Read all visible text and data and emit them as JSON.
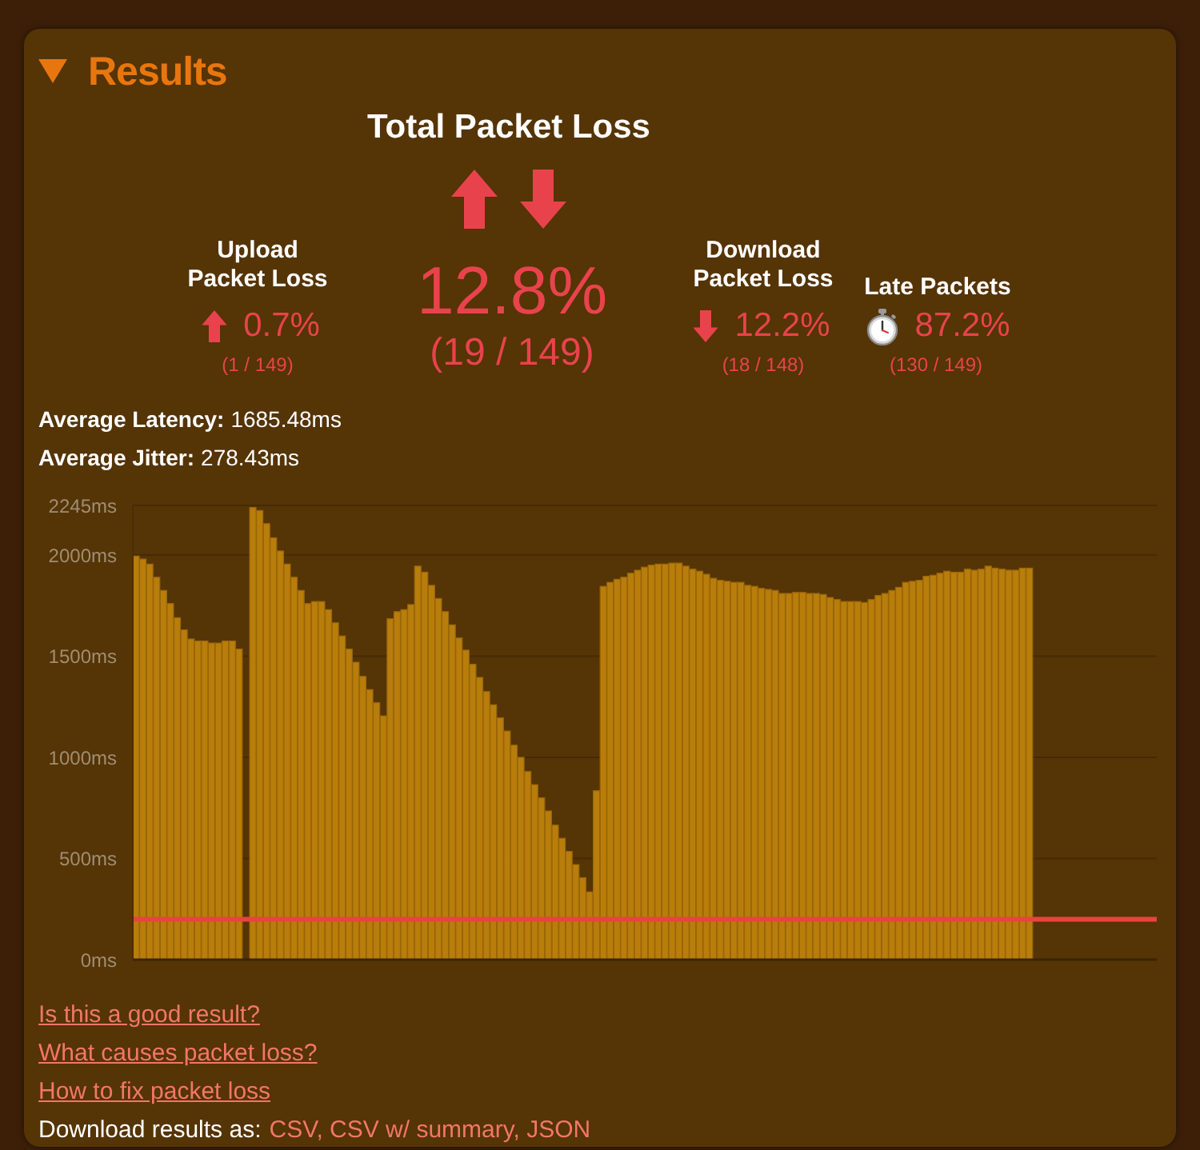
{
  "chart_data": [
    {
      "type": "other",
      "title": "Results",
      "annotations": [
        "Total Packet Loss",
        "12.8%",
        "(19 / 149)",
        "Upload Packet Loss",
        "0.7%",
        "(1 / 149)",
        "Download Packet Loss",
        "12.2%",
        "(18 / 148)",
        "Late Packets",
        "87.2%",
        "(130 / 149)",
        "Average Latency:",
        "1685.48ms",
        "Average Jitter:",
        "278.43ms"
      ]
    },
    {
      "type": "bar",
      "categories": [
        null,
        null,
        null,
        null,
        null,
        null,
        null,
        null,
        null,
        null,
        null,
        null,
        null,
        null,
        null,
        null,
        null,
        null,
        null,
        null,
        null,
        null,
        null,
        null,
        null,
        null,
        null,
        null,
        null,
        null,
        null,
        null,
        null,
        null,
        null,
        null,
        null,
        null,
        null,
        null,
        null,
        null,
        null,
        null,
        null,
        null,
        null,
        null,
        null,
        null,
        null,
        null,
        null,
        null,
        null,
        null,
        null,
        null,
        null,
        null,
        null,
        null,
        null,
        null,
        null,
        null,
        null,
        null,
        null,
        null,
        null,
        null,
        null,
        null,
        null,
        null,
        null,
        null,
        null,
        null,
        null,
        null,
        null,
        null,
        null,
        null,
        null,
        null,
        null,
        null,
        null,
        null,
        null,
        null,
        null,
        null,
        null,
        null,
        null,
        null,
        null,
        null,
        null,
        null,
        null,
        null,
        null,
        null,
        null,
        null,
        null,
        null,
        null,
        null,
        null,
        null,
        null,
        null,
        null,
        null,
        null,
        null,
        null,
        null,
        null,
        null,
        null,
        null,
        null,
        null,
        null,
        null,
        null,
        null,
        null,
        null,
        null,
        null,
        null,
        null,
        null,
        null,
        null,
        null,
        null,
        null,
        null,
        null,
        null
      ],
      "values": [
        1995,
        1980,
        1955,
        1890,
        1825,
        1760,
        1690,
        1630,
        1585,
        1575,
        1575,
        1565,
        1565,
        1575,
        1575,
        1535,
        null,
        2235,
        2220,
        2155,
        2085,
        2020,
        1955,
        1890,
        1825,
        1760,
        1770,
        1770,
        1730,
        1665,
        1600,
        1535,
        1470,
        1400,
        1335,
        1270,
        1205,
        1685,
        1720,
        1730,
        1755,
        1945,
        1915,
        1850,
        1785,
        1720,
        1655,
        1590,
        1530,
        1460,
        1395,
        1325,
        1260,
        1195,
        1130,
        1060,
        1000,
        930,
        865,
        800,
        735,
        665,
        600,
        535,
        470,
        405,
        335,
        835,
        1845,
        1865,
        1880,
        1890,
        1910,
        1925,
        1940,
        1950,
        1955,
        1955,
        1960,
        1960,
        1945,
        1930,
        1920,
        1905,
        1885,
        1875,
        1870,
        1865,
        1865,
        1850,
        1845,
        1835,
        1830,
        1825,
        1810,
        1810,
        1815,
        1815,
        1810,
        1810,
        1805,
        1790,
        1780,
        1770,
        1770,
        1770,
        1765,
        1780,
        1800,
        1810,
        1825,
        1840,
        1865,
        1870,
        1875,
        1895,
        1900,
        1910,
        1920,
        1915,
        1915,
        1930,
        1925,
        1930,
        1945,
        1935,
        1930,
        1925,
        1925,
        1935,
        1935,
        null,
        null,
        null,
        null,
        null,
        null,
        null,
        null,
        null,
        null,
        null,
        null,
        null,
        null,
        null,
        null,
        null,
        null
      ],
      "color": "#b97d0b",
      "ylim": [
        0,
        2245
      ],
      "yticks": [
        {
          "value": 0,
          "label": "0ms"
        },
        {
          "value": 500,
          "label": "500ms"
        },
        {
          "value": 1000,
          "label": "1000ms"
        },
        {
          "value": 1500,
          "label": "1500ms"
        },
        {
          "value": 2000,
          "label": "2000ms"
        },
        {
          "value": 2245,
          "label": "2245ms"
        }
      ],
      "tick_labels": "y",
      "grid": "y",
      "ref_lines": [
        {
          "axis": "y",
          "value": 200,
          "color": "#e5453e"
        }
      ],
      "annotations": [
        "Is this a good result?",
        "What causes packet loss?",
        "How to fix packet loss",
        "Download results as:",
        "CSV, CSV w/ summary, JSON"
      ]
    }
  ]
}
